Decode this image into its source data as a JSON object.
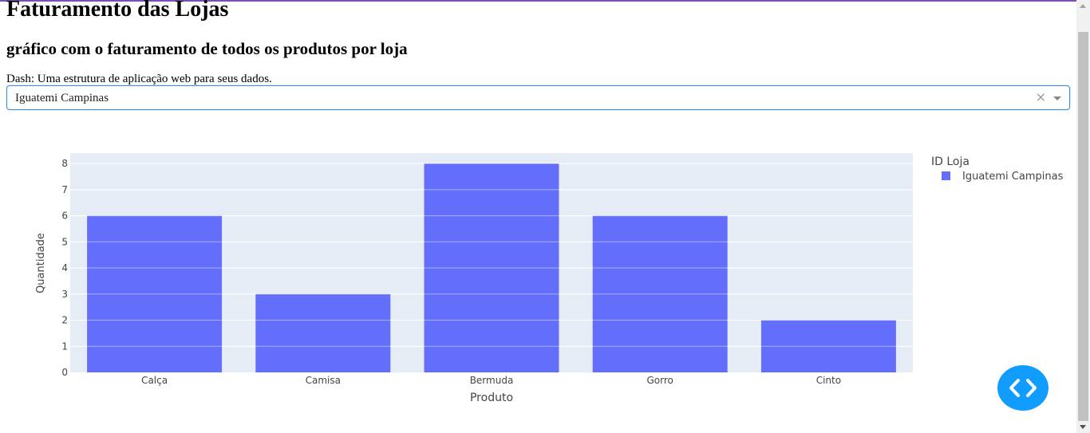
{
  "page": {
    "title": "Faturamento das Lojas",
    "subtitle": "gráfico com o faturamento de todos os produtos por loja",
    "description": "Dash: Uma estrutura de aplicação web para seus dados."
  },
  "dropdown": {
    "selected": "Iguatemi Campinas",
    "clear_glyph": "×"
  },
  "colors": {
    "accent": "#7b4fb5",
    "bar": "#636efa",
    "plot_bg": "#e5ecf6",
    "fab": "#119dff"
  },
  "icons": {
    "fab": "code-brackets-icon",
    "clear": "clear-x-icon",
    "dropdown": "chevron-down-icon"
  },
  "chart_data": {
    "type": "bar",
    "categories": [
      "Calça",
      "Camisa",
      "Bermuda",
      "Gorro",
      "Cinto"
    ],
    "series": [
      {
        "name": "Iguatemi Campinas",
        "values": [
          6,
          3,
          8,
          6,
          2
        ]
      }
    ],
    "xlabel": "Produto",
    "ylabel": "Quantidade",
    "ylim": [
      0,
      8.4
    ],
    "yticks": [
      0,
      1,
      2,
      3,
      4,
      5,
      6,
      7,
      8
    ],
    "legend_title": "ID Loja",
    "legend_position": "top-right",
    "grid": true
  }
}
